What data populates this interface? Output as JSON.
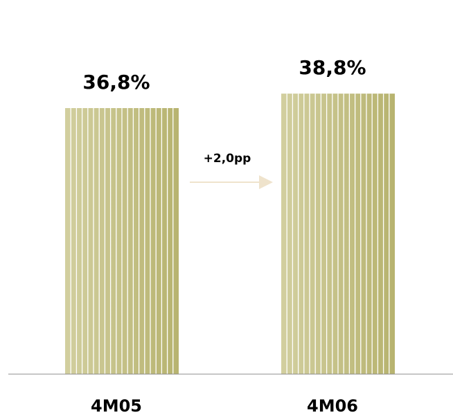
{
  "chart_data": {
    "type": "bar",
    "categories": [
      "4M05",
      "4M06"
    ],
    "values": [
      36.8,
      38.8
    ],
    "value_labels": [
      "36,8%",
      "38,8%"
    ],
    "title": "",
    "xlabel": "",
    "ylabel": "",
    "grid": false,
    "legend": "none",
    "annotation": {
      "text": "+2,0pp",
      "from": "4M05",
      "to": "4M06"
    },
    "colors": {
      "bar_light": "#d2cf9f",
      "bar_dark": "#b7b36f",
      "stripe": "#ffffff",
      "arrow": "#efe3cc",
      "axis": "#8c8c8c"
    }
  }
}
